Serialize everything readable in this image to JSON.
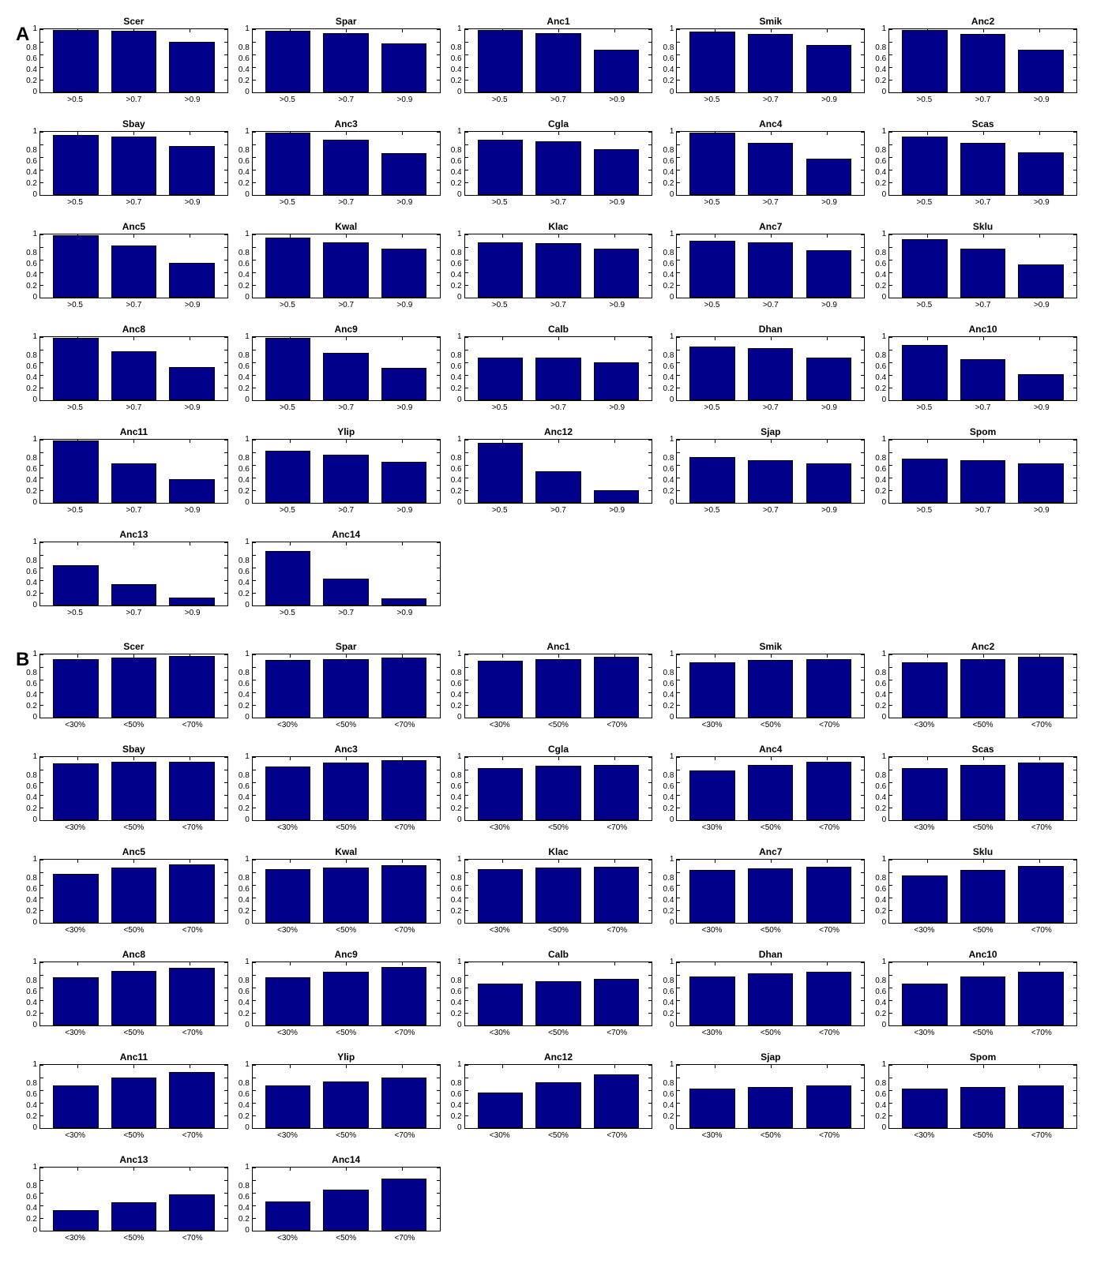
{
  "bar_color": "#00008b",
  "bar_edge_color": "#000000",
  "bg_color": "#ffffff",
  "box_border_color": "#000000",
  "tick_fontsize": 10,
  "title_fontsize": 12,
  "panel_label_fontsize": 24,
  "ylim": [
    0,
    1
  ],
  "yticks": [
    0,
    0.2,
    0.4,
    0.6,
    0.8,
    1
  ],
  "ytick_labels": [
    "0",
    "0.2",
    "0.4",
    "0.6",
    "0.8",
    "1"
  ],
  "panels": {
    "A": {
      "label": "A",
      "xticks": [
        ">0.5",
        ">0.7",
        ">0.9"
      ],
      "charts": [
        {
          "title": "Scer",
          "values": [
            0.99,
            0.98,
            0.8
          ]
        },
        {
          "title": "Spar",
          "values": [
            0.97,
            0.94,
            0.77
          ]
        },
        {
          "title": "Anc1",
          "values": [
            0.99,
            0.94,
            0.68
          ]
        },
        {
          "title": "Smik",
          "values": [
            0.96,
            0.93,
            0.75
          ]
        },
        {
          "title": "Anc2",
          "values": [
            0.99,
            0.92,
            0.67
          ]
        },
        {
          "title": "Sbay",
          "values": [
            0.95,
            0.92,
            0.77
          ]
        },
        {
          "title": "Anc3",
          "values": [
            0.99,
            0.88,
            0.66
          ]
        },
        {
          "title": "Cgla",
          "values": [
            0.88,
            0.85,
            0.72
          ]
        },
        {
          "title": "Anc4",
          "values": [
            0.99,
            0.82,
            0.58
          ]
        },
        {
          "title": "Scas",
          "values": [
            0.92,
            0.83,
            0.67
          ]
        },
        {
          "title": "Anc5",
          "values": [
            0.99,
            0.82,
            0.55
          ]
        },
        {
          "title": "Kwal",
          "values": [
            0.95,
            0.88,
            0.78
          ]
        },
        {
          "title": "Klac",
          "values": [
            0.87,
            0.86,
            0.77
          ]
        },
        {
          "title": "Anc7",
          "values": [
            0.9,
            0.87,
            0.75
          ]
        },
        {
          "title": "Sklu",
          "values": [
            0.93,
            0.78,
            0.53
          ]
        },
        {
          "title": "Anc8",
          "values": [
            0.99,
            0.77,
            0.52
          ]
        },
        {
          "title": "Anc9",
          "values": [
            0.99,
            0.75,
            0.51
          ]
        },
        {
          "title": "Calb",
          "values": [
            0.67,
            0.67,
            0.6
          ]
        },
        {
          "title": "Dhan",
          "values": [
            0.85,
            0.82,
            0.68
          ]
        },
        {
          "title": "Anc10",
          "values": [
            0.87,
            0.65,
            0.41
          ]
        },
        {
          "title": "Anc11",
          "values": [
            0.99,
            0.63,
            0.38
          ]
        },
        {
          "title": "Ylip",
          "values": [
            0.83,
            0.76,
            0.65
          ]
        },
        {
          "title": "Anc12",
          "values": [
            0.95,
            0.5,
            0.2
          ]
        },
        {
          "title": "Sjap",
          "values": [
            0.72,
            0.68,
            0.62
          ]
        },
        {
          "title": "Spom",
          "values": [
            0.7,
            0.68,
            0.62
          ]
        },
        {
          "title": "Anc13",
          "values": [
            0.64,
            0.34,
            0.12
          ]
        },
        {
          "title": "Anc14",
          "values": [
            0.86,
            0.43,
            0.11
          ]
        }
      ]
    },
    "B": {
      "label": "B",
      "xticks": [
        "<30%",
        "<50%",
        "<70%"
      ],
      "charts": [
        {
          "title": "Scer",
          "values": [
            0.93,
            0.95,
            0.97
          ]
        },
        {
          "title": "Spar",
          "values": [
            0.91,
            0.93,
            0.95
          ]
        },
        {
          "title": "Anc1",
          "values": [
            0.9,
            0.93,
            0.96
          ]
        },
        {
          "title": "Smik",
          "values": [
            0.88,
            0.91,
            0.93
          ]
        },
        {
          "title": "Anc2",
          "values": [
            0.88,
            0.92,
            0.96
          ]
        },
        {
          "title": "Sbay",
          "values": [
            0.9,
            0.92,
            0.93
          ]
        },
        {
          "title": "Anc3",
          "values": [
            0.85,
            0.91,
            0.95
          ]
        },
        {
          "title": "Cgla",
          "values": [
            0.82,
            0.86,
            0.88
          ]
        },
        {
          "title": "Anc4",
          "values": [
            0.79,
            0.88,
            0.93
          ]
        },
        {
          "title": "Scas",
          "values": [
            0.82,
            0.87,
            0.91
          ]
        },
        {
          "title": "Anc5",
          "values": [
            0.78,
            0.87,
            0.93
          ]
        },
        {
          "title": "Kwal",
          "values": [
            0.85,
            0.88,
            0.91
          ]
        },
        {
          "title": "Klac",
          "values": [
            0.85,
            0.87,
            0.89
          ]
        },
        {
          "title": "Anc7",
          "values": [
            0.84,
            0.86,
            0.89
          ]
        },
        {
          "title": "Sklu",
          "values": [
            0.75,
            0.84,
            0.9
          ]
        },
        {
          "title": "Anc8",
          "values": [
            0.76,
            0.86,
            0.91
          ]
        },
        {
          "title": "Anc9",
          "values": [
            0.76,
            0.85,
            0.92
          ]
        },
        {
          "title": "Calb",
          "values": [
            0.66,
            0.7,
            0.74
          ]
        },
        {
          "title": "Dhan",
          "values": [
            0.78,
            0.82,
            0.85
          ]
        },
        {
          "title": "Anc10",
          "values": [
            0.66,
            0.77,
            0.85
          ]
        },
        {
          "title": "Anc11",
          "values": [
            0.68,
            0.8,
            0.89
          ]
        },
        {
          "title": "Ylip",
          "values": [
            0.68,
            0.74,
            0.8
          ]
        },
        {
          "title": "Anc12",
          "values": [
            0.56,
            0.73,
            0.85
          ]
        },
        {
          "title": "Sjap",
          "values": [
            0.63,
            0.65,
            0.68
          ]
        },
        {
          "title": "Spom",
          "values": [
            0.63,
            0.65,
            0.68
          ]
        },
        {
          "title": "Anc13",
          "values": [
            0.32,
            0.45,
            0.58
          ]
        },
        {
          "title": "Anc14",
          "values": [
            0.46,
            0.65,
            0.82
          ]
        }
      ]
    }
  }
}
